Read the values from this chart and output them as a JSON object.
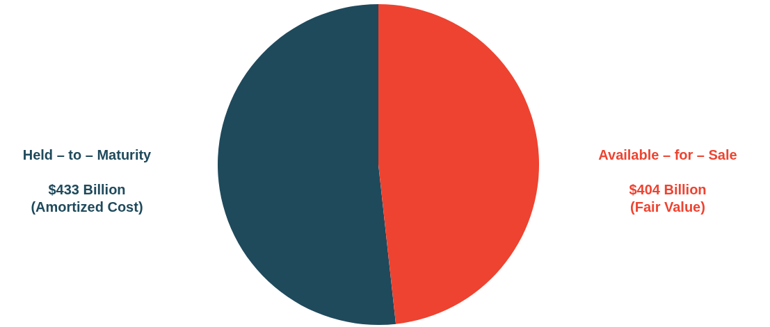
{
  "chart_data": {
    "type": "pie",
    "categories": [
      "Held – to – Maturity",
      "Available – for – Sale"
    ],
    "values": [
      433,
      404
    ],
    "colors": [
      "#1f4a5c",
      "#ee4330"
    ],
    "value_labels": [
      "$433 Billion",
      "$404 Billion"
    ],
    "annotations": [
      "(Amortized Cost)",
      "(Fair Value)"
    ]
  }
}
